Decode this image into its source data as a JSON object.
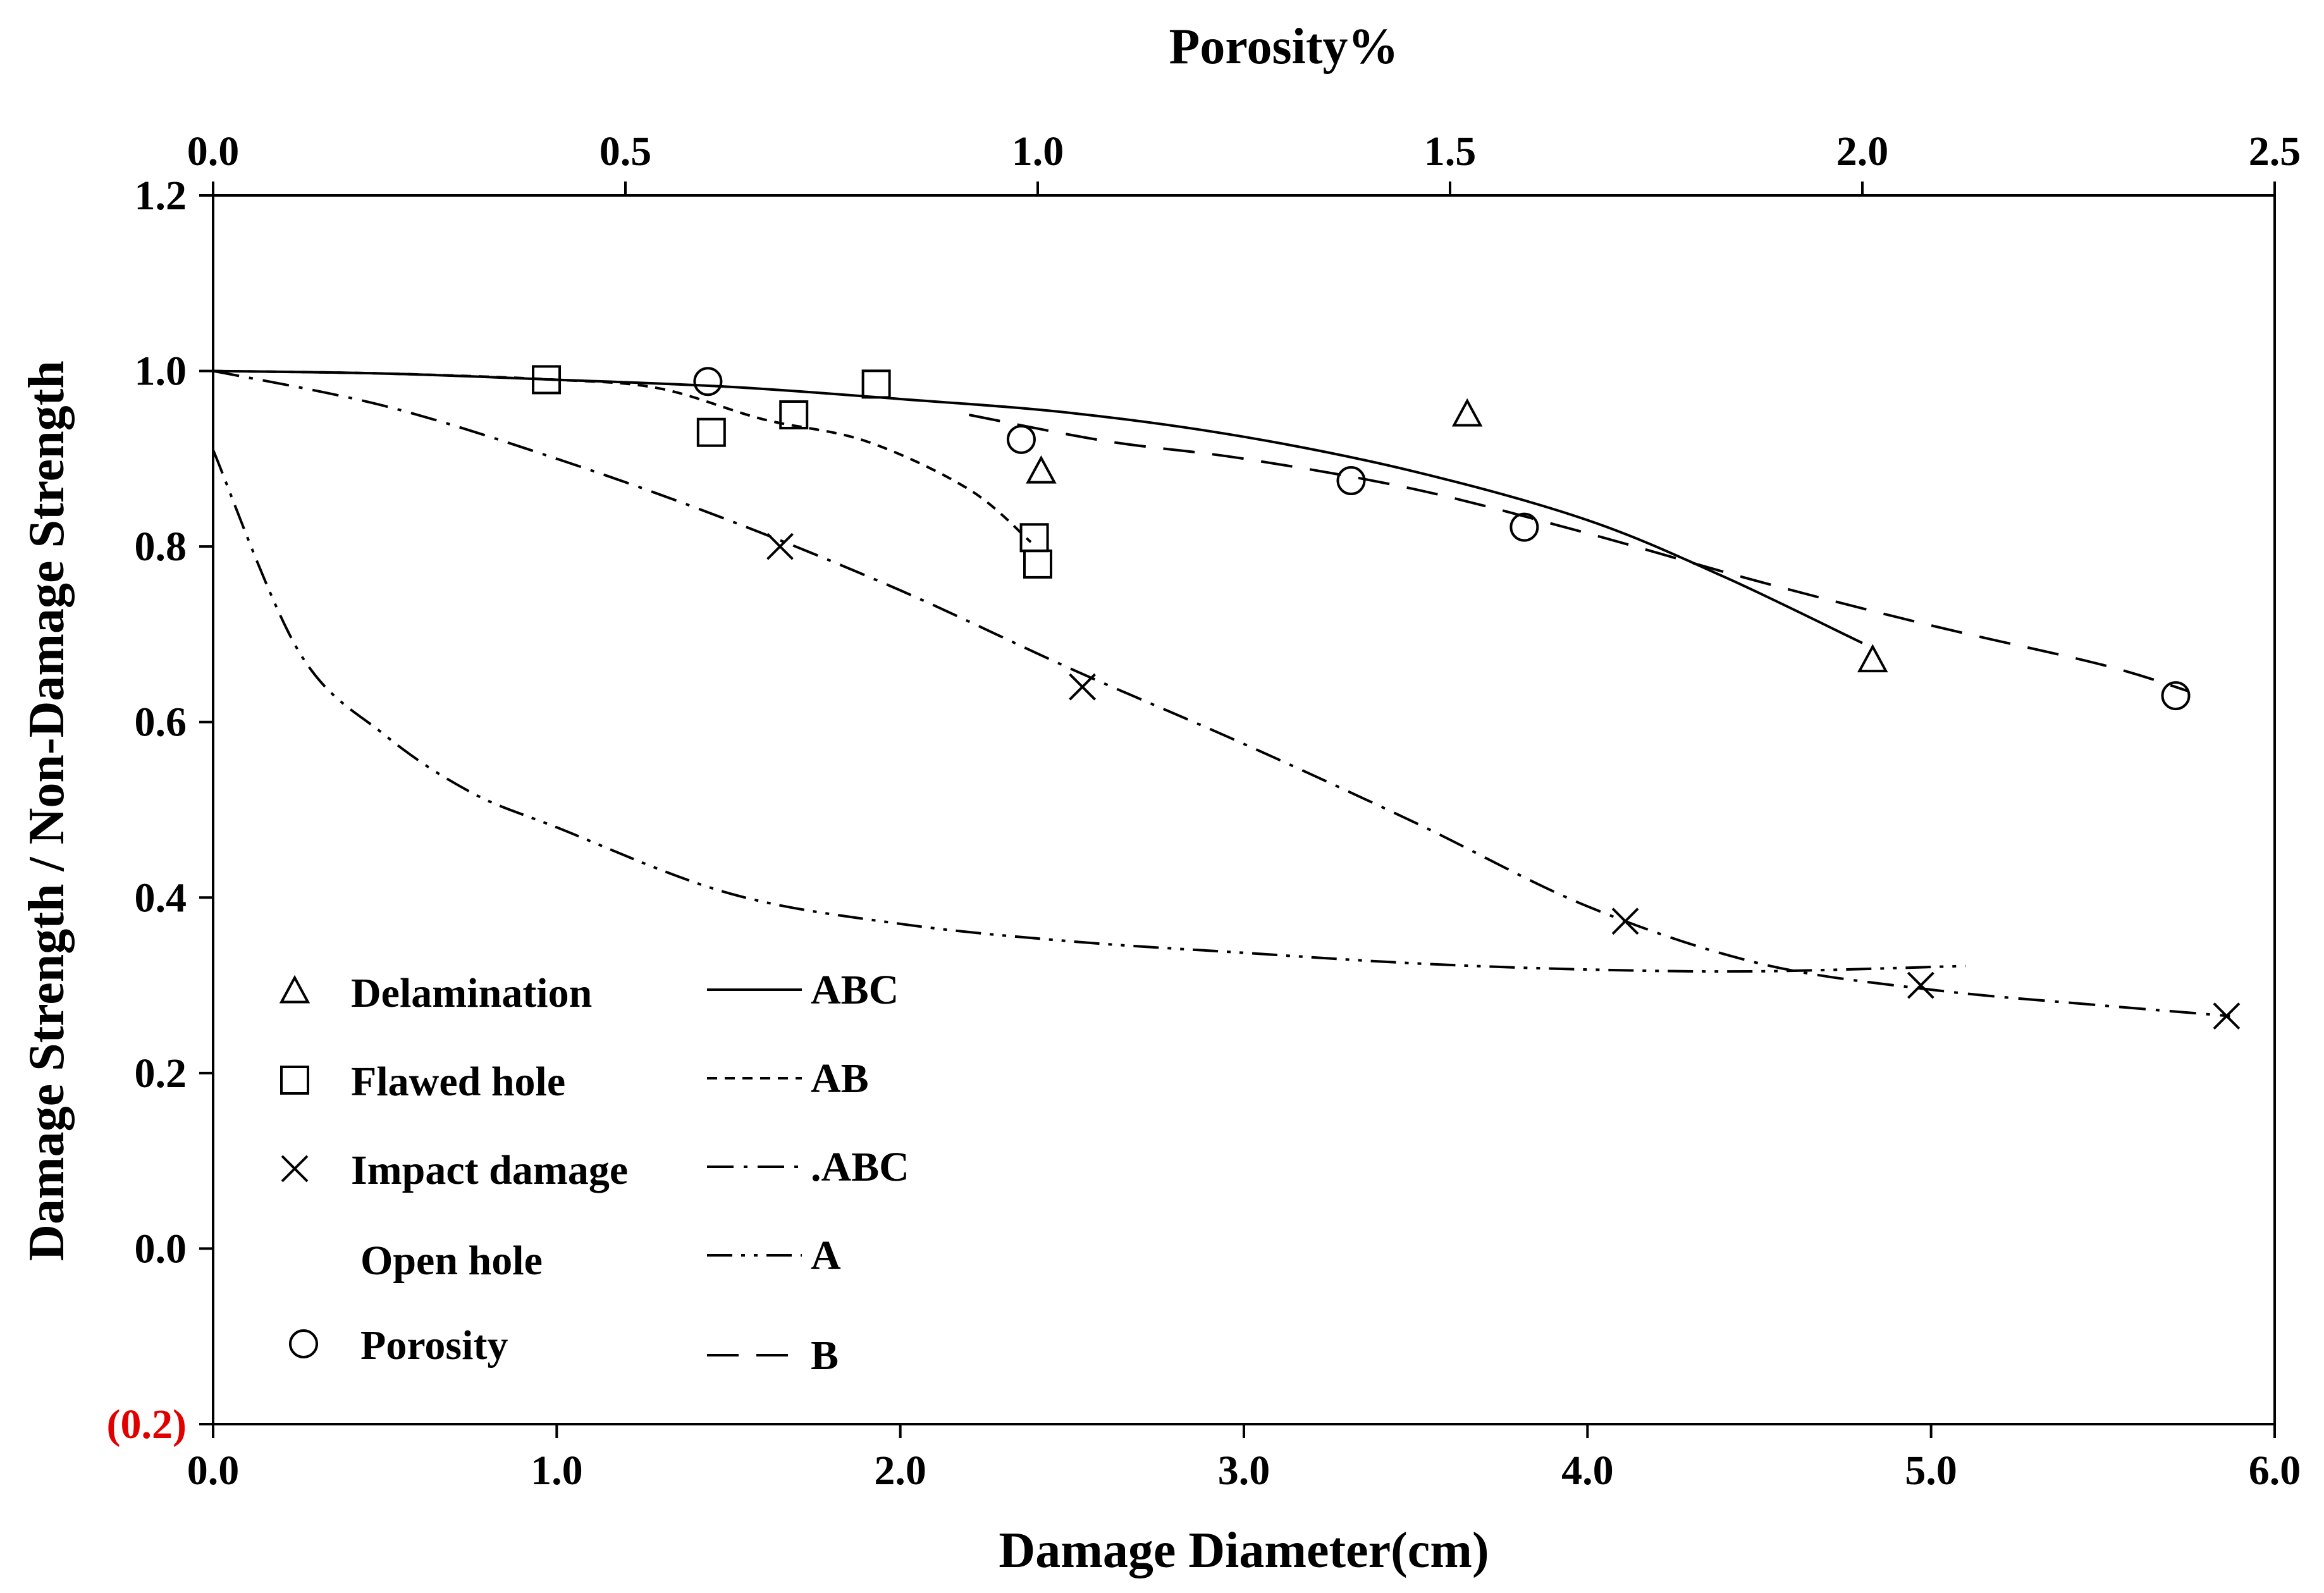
{
  "chart_data": {
    "type": "scatter",
    "title": "",
    "xlabel": "Damage Diameter(cm)",
    "x2label": "Porosity%",
    "ylabel": "Damage Strength / Non-Damage Strength",
    "xlim": [
      0,
      6
    ],
    "x2lim": [
      0,
      2.5
    ],
    "ylim": [
      -0.2,
      1.2
    ],
    "grid": false,
    "legend_position": "bottom-left",
    "x_ticks": [
      "0.0",
      "1.0",
      "2.0",
      "3.0",
      "4.0",
      "5.0",
      "6.0"
    ],
    "x2_ticks": [
      "0.0",
      "0.5",
      "1.0",
      "1.5",
      "2.0",
      "2.5"
    ],
    "y_ticks": [
      "(0.2)",
      "0.0",
      "0.2",
      "0.4",
      "0.6",
      "0.8",
      "1.0",
      "1.2"
    ],
    "y_tick_colors": [
      "#e00000",
      "#000000",
      "#000000",
      "#000000",
      "#000000",
      "#000000",
      "#000000",
      "#000000"
    ],
    "markers": [
      {
        "name": "Delamination",
        "symbol": "triangle",
        "axis": "bottom",
        "points": [
          [
            2.41,
            0.885
          ],
          [
            3.65,
            0.95
          ],
          [
            4.83,
            0.67
          ]
        ]
      },
      {
        "name": "Flawed hole",
        "symbol": "square",
        "axis": "bottom",
        "points": [
          [
            0.97,
            0.99
          ],
          [
            1.45,
            0.93
          ],
          [
            1.69,
            0.95
          ],
          [
            1.93,
            0.985
          ],
          [
            2.39,
            0.81
          ],
          [
            2.4,
            0.78
          ]
        ]
      },
      {
        "name": "Impact damage",
        "symbol": "x",
        "axis": "bottom",
        "points": [
          [
            1.65,
            0.8
          ],
          [
            2.53,
            0.64
          ],
          [
            4.11,
            0.373
          ],
          [
            4.97,
            0.3
          ],
          [
            5.86,
            0.265
          ]
        ]
      },
      {
        "name": "Open hole",
        "symbol": "none",
        "axis": "bottom",
        "points": []
      },
      {
        "name": "Porosity",
        "symbol": "circle",
        "axis": "top",
        "points": [
          [
            0.6,
            0.988
          ],
          [
            0.98,
            0.922
          ],
          [
            1.38,
            0.875
          ],
          [
            1.59,
            0.822
          ],
          [
            2.38,
            0.63
          ]
        ]
      }
    ],
    "curves": [
      {
        "name": "ABC",
        "style": "solid",
        "points": [
          [
            0,
            1.0
          ],
          [
            0.5,
            0.997
          ],
          [
            1.0,
            0.99
          ],
          [
            1.5,
            0.982
          ],
          [
            2.0,
            0.968
          ],
          [
            2.5,
            0.952
          ],
          [
            3.0,
            0.925
          ],
          [
            3.5,
            0.885
          ],
          [
            4.0,
            0.83
          ],
          [
            4.4,
            0.765
          ],
          [
            4.8,
            0.69
          ]
        ]
      },
      {
        "name": "AB",
        "style": "dash-short",
        "points": [
          [
            0,
            1.0
          ],
          [
            0.5,
            0.997
          ],
          [
            1.0,
            0.99
          ],
          [
            1.3,
            0.98
          ],
          [
            1.6,
            0.945
          ],
          [
            1.9,
            0.92
          ],
          [
            2.2,
            0.865
          ],
          [
            2.38,
            0.805
          ]
        ]
      },
      {
        "name": ".ABC",
        "style": "dash-dot",
        "points": [
          [
            0,
            1.0
          ],
          [
            0.5,
            0.96
          ],
          [
            1.0,
            0.9
          ],
          [
            1.5,
            0.83
          ],
          [
            2.0,
            0.75
          ],
          [
            2.5,
            0.66
          ],
          [
            3.0,
            0.575
          ],
          [
            3.5,
            0.485
          ],
          [
            4.0,
            0.39
          ],
          [
            4.5,
            0.325
          ],
          [
            5.0,
            0.295
          ],
          [
            5.5,
            0.277
          ],
          [
            5.87,
            0.265
          ]
        ]
      },
      {
        "name": "A",
        "style": "dash-dot-dot",
        "points": [
          [
            0,
            0.91
          ],
          [
            0.25,
            0.68
          ],
          [
            0.5,
            0.585
          ],
          [
            0.75,
            0.52
          ],
          [
            1.0,
            0.48
          ],
          [
            1.5,
            0.405
          ],
          [
            2.0,
            0.37
          ],
          [
            2.5,
            0.35
          ],
          [
            3.0,
            0.337
          ],
          [
            3.5,
            0.325
          ],
          [
            4.0,
            0.318
          ],
          [
            4.5,
            0.316
          ],
          [
            5.1,
            0.322
          ]
        ]
      },
      {
        "name": "B",
        "style": "dash-long",
        "points": [
          [
            2.2,
            0.95
          ],
          [
            2.6,
            0.92
          ],
          [
            3.0,
            0.9
          ],
          [
            3.5,
            0.865
          ],
          [
            4.0,
            0.815
          ],
          [
            4.5,
            0.76
          ],
          [
            5.0,
            0.71
          ],
          [
            5.5,
            0.665
          ],
          [
            5.75,
            0.635
          ]
        ]
      }
    ]
  },
  "legend": {
    "markers": [
      {
        "label": "Delamination",
        "symbol": "triangle"
      },
      {
        "label": "Flawed hole",
        "symbol": "square"
      },
      {
        "label": "Impact damage",
        "symbol": "x"
      },
      {
        "label": "Open hole",
        "symbol": "none"
      },
      {
        "label": "Porosity",
        "symbol": "circle"
      }
    ],
    "lines": [
      {
        "label": "ABC",
        "style": "solid"
      },
      {
        "label": "AB",
        "style": "dash-short"
      },
      {
        "label": ".ABC",
        "style": "dash-dot"
      },
      {
        "label": "A",
        "style": "dash-dot-dot"
      },
      {
        "label": "B",
        "style": "dash-long"
      }
    ]
  }
}
